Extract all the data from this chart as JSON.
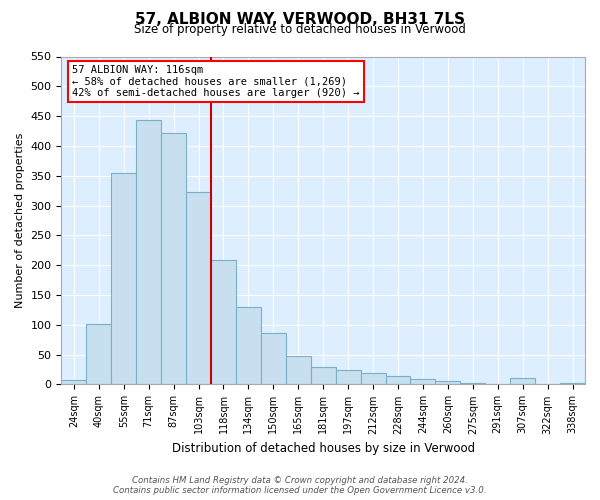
{
  "title": "57, ALBION WAY, VERWOOD, BH31 7LS",
  "subtitle": "Size of property relative to detached houses in Verwood",
  "xlabel": "Distribution of detached houses by size in Verwood",
  "ylabel": "Number of detached properties",
  "bin_labels": [
    "24sqm",
    "40sqm",
    "55sqm",
    "71sqm",
    "87sqm",
    "103sqm",
    "118sqm",
    "134sqm",
    "150sqm",
    "165sqm",
    "181sqm",
    "197sqm",
    "212sqm",
    "228sqm",
    "244sqm",
    "260sqm",
    "275sqm",
    "291sqm",
    "307sqm",
    "322sqm",
    "338sqm"
  ],
  "bin_values": [
    7,
    101,
    354,
    444,
    422,
    323,
    209,
    130,
    86,
    48,
    29,
    25,
    20,
    15,
    9,
    5,
    3,
    0,
    10,
    1,
    2
  ],
  "bar_color": "#c8dff0",
  "bar_edge_color": "#7aafc8",
  "vline_color": "#cc0000",
  "annotation_line1": "57 ALBION WAY: 116sqm",
  "annotation_line2": "← 58% of detached houses are smaller (1,269)",
  "annotation_line3": "42% of semi-detached houses are larger (920) →",
  "ylim": [
    0,
    550
  ],
  "yticks": [
    0,
    50,
    100,
    150,
    200,
    250,
    300,
    350,
    400,
    450,
    500,
    550
  ],
  "footnote": "Contains HM Land Registry data © Crown copyright and database right 2024.\nContains public sector information licensed under the Open Government Licence v3.0.",
  "plot_bg_color": "#ddeeff",
  "fig_bg_color": "#ffffff"
}
